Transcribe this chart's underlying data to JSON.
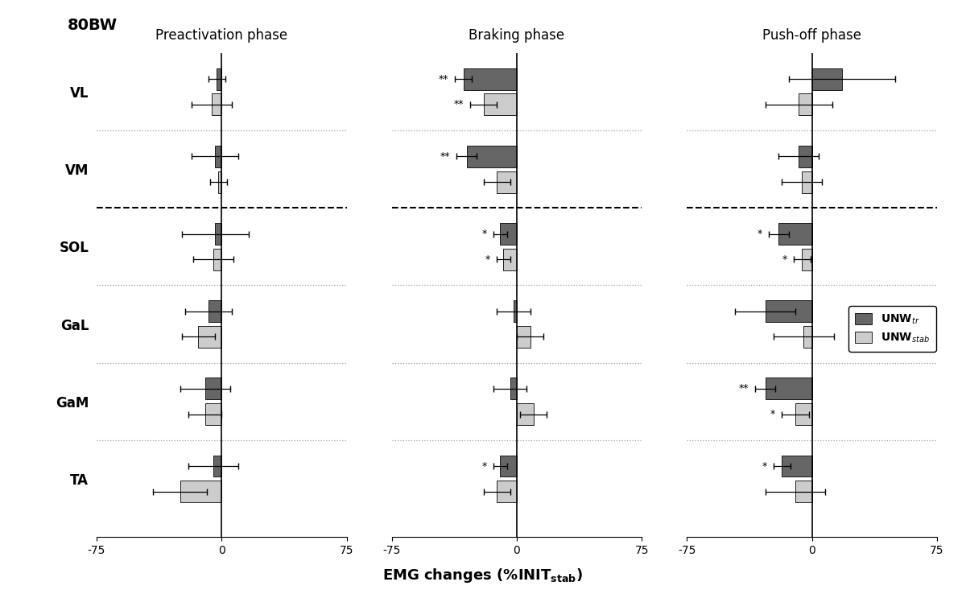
{
  "title": "80BW",
  "phases": [
    "Preactivation phase",
    "Braking phase",
    "Push-off phase"
  ],
  "muscles": [
    "VL",
    "VM",
    "SOL",
    "GaL",
    "GaM",
    "TA"
  ],
  "color_dark": "#666666",
  "color_light": "#cccccc",
  "xlim": [
    -75,
    75
  ],
  "xticks": [
    -75,
    0,
    75
  ],
  "data": {
    "preactivation": {
      "VL": {
        "dark_val": -3,
        "dark_err": 5,
        "light_val": -6,
        "light_err": 12,
        "dark_sig": "",
        "light_sig": ""
      },
      "VM": {
        "dark_val": -4,
        "dark_err": 14,
        "light_val": -2,
        "light_err": 5,
        "dark_sig": "",
        "light_sig": ""
      },
      "SOL": {
        "dark_val": -4,
        "dark_err": 20,
        "light_val": -5,
        "light_err": 12,
        "dark_sig": "",
        "light_sig": ""
      },
      "GaL": {
        "dark_val": -8,
        "dark_err": 14,
        "light_val": -14,
        "light_err": 10,
        "dark_sig": "",
        "light_sig": ""
      },
      "GaM": {
        "dark_val": -10,
        "dark_err": 15,
        "light_val": -10,
        "light_err": 10,
        "dark_sig": "",
        "light_sig": ""
      },
      "TA": {
        "dark_val": -5,
        "dark_err": 15,
        "light_val": -25,
        "light_err": 16,
        "dark_sig": "",
        "light_sig": ""
      }
    },
    "braking": {
      "VL": {
        "dark_val": -32,
        "dark_err": 5,
        "light_val": -20,
        "light_err": 8,
        "dark_sig": "**",
        "light_sig": "**"
      },
      "VM": {
        "dark_val": -30,
        "dark_err": 6,
        "light_val": -12,
        "light_err": 8,
        "dark_sig": "**",
        "light_sig": ""
      },
      "SOL": {
        "dark_val": -10,
        "dark_err": 4,
        "light_val": -8,
        "light_err": 4,
        "dark_sig": "*",
        "light_sig": "*"
      },
      "GaL": {
        "dark_val": -2,
        "dark_err": 10,
        "light_val": 8,
        "light_err": 8,
        "dark_sig": "",
        "light_sig": ""
      },
      "GaM": {
        "dark_val": -4,
        "dark_err": 10,
        "light_val": 10,
        "light_err": 8,
        "dark_sig": "",
        "light_sig": ""
      },
      "TA": {
        "dark_val": -10,
        "dark_err": 4,
        "light_val": -12,
        "light_err": 8,
        "dark_sig": "*",
        "light_sig": ""
      }
    },
    "pushoff": {
      "VL": {
        "dark_val": 18,
        "dark_err": 32,
        "light_val": -8,
        "light_err": 20,
        "dark_sig": "",
        "light_sig": ""
      },
      "VM": {
        "dark_val": -8,
        "dark_err": 12,
        "light_val": -6,
        "light_err": 12,
        "dark_sig": "",
        "light_sig": ""
      },
      "SOL": {
        "dark_val": -20,
        "dark_err": 6,
        "light_val": -6,
        "light_err": 5,
        "dark_sig": "*",
        "light_sig": "*"
      },
      "GaL": {
        "dark_val": -28,
        "dark_err": 18,
        "light_val": -5,
        "light_err": 18,
        "dark_sig": "",
        "light_sig": ""
      },
      "GaM": {
        "dark_val": -28,
        "dark_err": 6,
        "light_val": -10,
        "light_err": 8,
        "dark_sig": "**",
        "light_sig": "*"
      },
      "TA": {
        "dark_val": -18,
        "dark_err": 5,
        "light_val": -10,
        "light_err": 18,
        "dark_sig": "*",
        "light_sig": ""
      }
    }
  }
}
